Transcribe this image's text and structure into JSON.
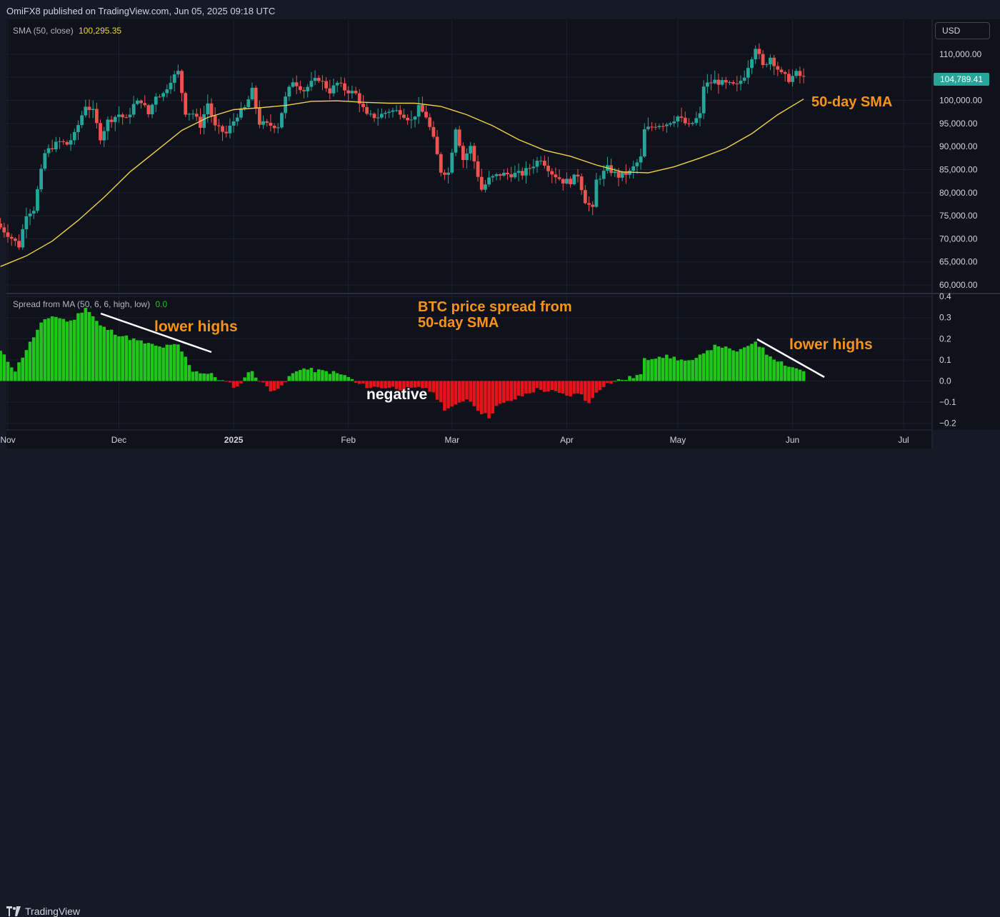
{
  "header": {
    "published_text": "OmiFX8 published on TradingView.com, Jun 05, 2025 09:18 UTC"
  },
  "main_legend": {
    "indicator_name": "SMA (50, close)",
    "indicator_value": "100,295.35"
  },
  "sub_legend": {
    "indicator_name": "Spread from MA (50, 6, 6, high, low)",
    "indicator_value": "0.0"
  },
  "currency_label": "USD",
  "last_price_label": "104,789.41",
  "annotations": {
    "sma_label": "50-day SMA",
    "spread_title_line1": "BTC price spread from",
    "spread_title_line2": "50-day SMA",
    "lower_highs_left": "lower highs",
    "lower_highs_right": "lower highs",
    "negative": "negative"
  },
  "footer": {
    "brand": "TradingView"
  },
  "colors": {
    "up": "#26a69a",
    "down": "#ef5350",
    "sma_line": "#f0d14a",
    "annotation": "#f7931a",
    "hist_positive": "#22c51c",
    "hist_negative": "#e3141a",
    "indicator_value": "#f0d14a",
    "sub_value": "#22c51c"
  },
  "chart_data": [
    {
      "type": "candlestick",
      "title": "",
      "ylim": [
        59000,
        114000
      ],
      "y_ticks": [
        60000,
        65000,
        70000,
        75000,
        80000,
        85000,
        90000,
        95000,
        100000,
        105000,
        110000
      ],
      "y_tick_labels": [
        "60,000.00",
        "65,000.00",
        "70,000.00",
        "75,000.00",
        "80,000.00",
        "85,000.00",
        "90,000.00",
        "95,000.00",
        "100,000.00",
        "105,000.00",
        "110,000.00"
      ],
      "x_range": [
        "2024-10-30",
        "2025-07-05"
      ],
      "x_ticks": [
        {
          "label": "Nov",
          "date": "2024-11-01",
          "bold": false
        },
        {
          "label": "Dec",
          "date": "2024-12-01",
          "bold": false
        },
        {
          "label": "2025",
          "date": "2025-01-01",
          "bold": true
        },
        {
          "label": "Feb",
          "date": "2025-02-01",
          "bold": false
        },
        {
          "label": "Mar",
          "date": "2025-03-01",
          "bold": false
        },
        {
          "label": "Apr",
          "date": "2025-04-01",
          "bold": false
        },
        {
          "label": "May",
          "date": "2025-05-01",
          "bold": false
        },
        {
          "label": "Jun",
          "date": "2025-06-01",
          "bold": false
        },
        {
          "label": "Jul",
          "date": "2025-07-01",
          "bold": false
        }
      ],
      "series": [
        {
          "name": "BTC close (approx.)",
          "kind": "close_path",
          "points": [
            [
              "2024-10-30",
              72500
            ],
            [
              "2024-11-01",
              71000
            ],
            [
              "2024-11-04",
              68500
            ],
            [
              "2024-11-06",
              75500
            ],
            [
              "2024-11-08",
              76500
            ],
            [
              "2024-11-11",
              88500
            ],
            [
              "2024-11-13",
              90000
            ],
            [
              "2024-11-15",
              91000
            ],
            [
              "2024-11-17",
              90500
            ],
            [
              "2024-11-19",
              92500
            ],
            [
              "2024-11-22",
              99000
            ],
            [
              "2024-11-24",
              97500
            ],
            [
              "2024-11-26",
              92000
            ],
            [
              "2024-11-28",
              95500
            ],
            [
              "2024-12-01",
              97000
            ],
            [
              "2024-12-03",
              95800
            ],
            [
              "2024-12-05",
              99000
            ],
            [
              "2024-12-07",
              100000
            ],
            [
              "2024-12-09",
              97000
            ],
            [
              "2024-12-11",
              101200
            ],
            [
              "2024-12-13",
              101400
            ],
            [
              "2024-12-15",
              104500
            ],
            [
              "2024-12-17",
              106100
            ],
            [
              "2024-12-19",
              97500
            ],
            [
              "2024-12-21",
              97200
            ],
            [
              "2024-12-23",
              94600
            ],
            [
              "2024-12-25",
              99400
            ],
            [
              "2024-12-27",
              94200
            ],
            [
              "2024-12-30",
              92800
            ],
            [
              "2025-01-02",
              96900
            ],
            [
              "2025-01-04",
              98300
            ],
            [
              "2025-01-06",
              102100
            ],
            [
              "2025-01-08",
              95100
            ],
            [
              "2025-01-10",
              94700
            ],
            [
              "2025-01-13",
              94500
            ],
            [
              "2025-01-15",
              100500
            ],
            [
              "2025-01-17",
              104300
            ],
            [
              "2025-01-20",
              102200
            ],
            [
              "2025-01-22",
              103700
            ],
            [
              "2025-01-24",
              104800
            ],
            [
              "2025-01-27",
              102000
            ],
            [
              "2025-01-29",
              103700
            ],
            [
              "2025-01-31",
              102400
            ],
            [
              "2025-02-03",
              101400
            ],
            [
              "2025-02-06",
              96600
            ],
            [
              "2025-02-09",
              96500
            ],
            [
              "2025-02-12",
              97800
            ],
            [
              "2025-02-15",
              97600
            ],
            [
              "2025-02-18",
              95600
            ],
            [
              "2025-02-20",
              98300
            ],
            [
              "2025-02-22",
              96600
            ],
            [
              "2025-02-24",
              91500
            ],
            [
              "2025-02-26",
              84700
            ],
            [
              "2025-02-28",
              84300
            ],
            [
              "2025-03-02",
              94200
            ],
            [
              "2025-03-04",
              87200
            ],
            [
              "2025-03-06",
              89900
            ],
            [
              "2025-03-09",
              80700
            ],
            [
              "2025-03-11",
              82900
            ],
            [
              "2025-03-14",
              84000
            ],
            [
              "2025-03-17",
              84000
            ],
            [
              "2025-03-20",
              84100
            ],
            [
              "2025-03-23",
              86100
            ],
            [
              "2025-03-25",
              87500
            ],
            [
              "2025-03-28",
              84300
            ],
            [
              "2025-03-31",
              82500
            ],
            [
              "2025-04-02",
              82500
            ],
            [
              "2025-04-04",
              83900
            ],
            [
              "2025-04-06",
              78300
            ],
            [
              "2025-04-08",
              76300
            ],
            [
              "2025-04-09",
              82600
            ],
            [
              "2025-04-12",
              85300
            ],
            [
              "2025-04-15",
              83600
            ],
            [
              "2025-04-18",
              84400
            ],
            [
              "2025-04-21",
              87500
            ],
            [
              "2025-04-22",
              93500
            ],
            [
              "2025-04-25",
              94700
            ],
            [
              "2025-04-28",
              95000
            ],
            [
              "2025-05-01",
              96500
            ],
            [
              "2025-05-04",
              94300
            ],
            [
              "2025-05-07",
              96800
            ],
            [
              "2025-05-08",
              103200
            ],
            [
              "2025-05-11",
              104200
            ],
            [
              "2025-05-14",
              103500
            ],
            [
              "2025-05-17",
              103100
            ],
            [
              "2025-05-19",
              105500
            ],
            [
              "2025-05-21",
              109600
            ],
            [
              "2025-05-22",
              111700
            ],
            [
              "2025-05-24",
              107300
            ],
            [
              "2025-05-26",
              109400
            ],
            [
              "2025-05-29",
              105600
            ],
            [
              "2025-05-31",
              104600
            ],
            [
              "2025-06-02",
              105800
            ],
            [
              "2025-06-04",
              104800
            ]
          ]
        },
        {
          "name": "SMA (50, close)",
          "kind": "line",
          "points": [
            [
              "2024-10-30",
              64000
            ],
            [
              "2024-11-06",
              66300
            ],
            [
              "2024-11-13",
              69500
            ],
            [
              "2024-11-20",
              74000
            ],
            [
              "2024-11-27",
              79000
            ],
            [
              "2024-12-04",
              84500
            ],
            [
              "2024-12-11",
              89000
            ],
            [
              "2024-12-18",
              93500
            ],
            [
              "2024-12-25",
              96300
            ],
            [
              "2025-01-01",
              98000
            ],
            [
              "2025-01-08",
              98400
            ],
            [
              "2025-01-15",
              98900
            ],
            [
              "2025-01-22",
              99800
            ],
            [
              "2025-01-29",
              99900
            ],
            [
              "2025-02-05",
              99600
            ],
            [
              "2025-02-12",
              99400
            ],
            [
              "2025-02-19",
              99400
            ],
            [
              "2025-02-26",
              98700
            ],
            [
              "2025-03-05",
              96900
            ],
            [
              "2025-03-12",
              94500
            ],
            [
              "2025-03-19",
              91500
            ],
            [
              "2025-03-26",
              89200
            ],
            [
              "2025-04-02",
              87900
            ],
            [
              "2025-04-09",
              86000
            ],
            [
              "2025-04-16",
              84500
            ],
            [
              "2025-04-23",
              84300
            ],
            [
              "2025-04-30",
              85600
            ],
            [
              "2025-05-07",
              87500
            ],
            [
              "2025-05-14",
              89600
            ],
            [
              "2025-05-21",
              92800
            ],
            [
              "2025-05-28",
              96900
            ],
            [
              "2025-06-04",
              100300
            ]
          ]
        }
      ]
    },
    {
      "type": "bar",
      "title": "",
      "ylim": [
        -0.23,
        0.4
      ],
      "y_ticks": [
        -0.2,
        -0.1,
        0.0,
        0.1,
        0.2,
        0.3,
        0.4
      ],
      "y_tick_labels": [
        "−0.2",
        "−0.1",
        "0.0",
        "0.1",
        "0.2",
        "0.3",
        "0.4"
      ],
      "series": [
        {
          "name": "Spread from MA",
          "points": [
            [
              "2024-10-30",
              0.14
            ],
            [
              "2024-11-03",
              0.05
            ],
            [
              "2024-11-06",
              0.15
            ],
            [
              "2024-11-10",
              0.27
            ],
            [
              "2024-11-13",
              0.31
            ],
            [
              "2024-11-18",
              0.28
            ],
            [
              "2024-11-22",
              0.35
            ],
            [
              "2024-11-26",
              0.26
            ],
            [
              "2024-12-01",
              0.22
            ],
            [
              "2024-12-06",
              0.19
            ],
            [
              "2024-12-12",
              0.16
            ],
            [
              "2024-12-17",
              0.17
            ],
            [
              "2024-12-21",
              0.05
            ],
            [
              "2024-12-26",
              0.03
            ],
            [
              "2024-12-29",
              0.0
            ],
            [
              "2025-01-02",
              -0.03
            ],
            [
              "2025-01-04",
              0.02
            ],
            [
              "2025-01-06",
              0.05
            ],
            [
              "2025-01-08",
              0.0
            ],
            [
              "2025-01-11",
              -0.04
            ],
            [
              "2025-01-14",
              -0.03
            ],
            [
              "2025-01-16",
              0.02
            ],
            [
              "2025-01-19",
              0.06
            ],
            [
              "2025-01-23",
              0.05
            ],
            [
              "2025-01-28",
              0.04
            ],
            [
              "2025-01-30",
              0.03
            ],
            [
              "2025-02-01",
              0.02
            ],
            [
              "2025-02-03",
              -0.01
            ],
            [
              "2025-02-07",
              -0.03
            ],
            [
              "2025-02-12",
              -0.03
            ],
            [
              "2025-02-18",
              -0.04
            ],
            [
              "2025-02-22",
              -0.03
            ],
            [
              "2025-02-25",
              -0.08
            ],
            [
              "2025-02-27",
              -0.13
            ],
            [
              "2025-03-02",
              -0.12
            ],
            [
              "2025-03-05",
              -0.08
            ],
            [
              "2025-03-09",
              -0.15
            ],
            [
              "2025-03-11",
              -0.17
            ],
            [
              "2025-03-13",
              -0.12
            ],
            [
              "2025-03-16",
              -0.1
            ],
            [
              "2025-03-20",
              -0.07
            ],
            [
              "2025-03-24",
              -0.04
            ],
            [
              "2025-03-28",
              -0.05
            ],
            [
              "2025-04-01",
              -0.07
            ],
            [
              "2025-04-05",
              -0.06
            ],
            [
              "2025-04-07",
              -0.11
            ],
            [
              "2025-04-09",
              -0.05
            ],
            [
              "2025-04-11",
              -0.02
            ],
            [
              "2025-04-14",
              0.0
            ],
            [
              "2025-04-17",
              0.01
            ],
            [
              "2025-04-21",
              0.03
            ],
            [
              "2025-04-22",
              0.1
            ],
            [
              "2025-04-26",
              0.12
            ],
            [
              "2025-04-30",
              0.11
            ],
            [
              "2025-05-04",
              0.09
            ],
            [
              "2025-05-06",
              0.1
            ],
            [
              "2025-05-08",
              0.14
            ],
            [
              "2025-05-12",
              0.17
            ],
            [
              "2025-05-16",
              0.14
            ],
            [
              "2025-05-19",
              0.15
            ],
            [
              "2025-05-21",
              0.18
            ],
            [
              "2025-05-22",
              0.19
            ],
            [
              "2025-05-25",
              0.13
            ],
            [
              "2025-05-28",
              0.1
            ],
            [
              "2025-05-31",
              0.07
            ],
            [
              "2025-06-04",
              0.05
            ]
          ]
        }
      ]
    }
  ]
}
